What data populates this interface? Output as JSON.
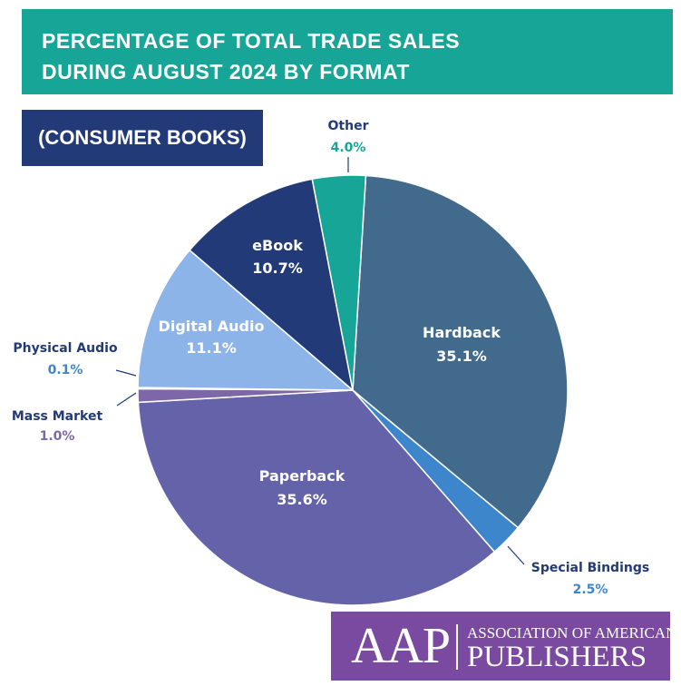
{
  "header": {
    "title_line1": "PERCENTAGE OF TOTAL TRADE SALES",
    "title_line2": "DURING AUGUST 2024 BY FORMAT",
    "subtitle": "(CONSUMER BOOKS)"
  },
  "colors": {
    "title_bg": "#16a596",
    "subtitle_bg": "#223a77",
    "logo_bg": "#7a4aa0"
  },
  "chart_data": {
    "type": "pie",
    "title": "PERCENTAGE OF TOTAL TRADE SALES DURING AUGUST 2024 BY FORMAT",
    "subtitle": "(CONSUMER BOOKS)",
    "start_angle_deg": 3.5,
    "direction": "clockwise",
    "slices": [
      {
        "label": "Hardback",
        "value": 35.1,
        "display": "35.1%",
        "color": "#426a8c",
        "label_color": "#ffffff",
        "label_placement": "inside"
      },
      {
        "label": "Special Bindings",
        "value": 2.5,
        "display": "2.5%",
        "color": "#3d86cc",
        "label_color": "#223a77",
        "value_color": "#3d86cc",
        "label_placement": "outside"
      },
      {
        "label": "Paperback",
        "value": 35.6,
        "display": "35.6%",
        "color": "#6462a8",
        "label_color": "#ffffff",
        "label_placement": "inside"
      },
      {
        "label": "Mass Market",
        "value": 1.0,
        "display": "1.0%",
        "color": "#7e67a8",
        "label_color": "#223a77",
        "value_color": "#7e67a8",
        "label_placement": "outside"
      },
      {
        "label": "Physical Audio",
        "value": 0.1,
        "display": "0.1%",
        "color": "#223a77",
        "label_color": "#223a77",
        "value_color": "#3d86cc",
        "label_placement": "outside"
      },
      {
        "label": "Digital Audio",
        "value": 11.1,
        "display": "11.1%",
        "color": "#8db4e8",
        "label_color": "#ffffff",
        "label_placement": "inside"
      },
      {
        "label": "eBook",
        "value": 10.7,
        "display": "10.7%",
        "color": "#223a77",
        "label_color": "#ffffff",
        "label_placement": "inside"
      },
      {
        "label": "Other",
        "value": 4.0,
        "display": "4.0%",
        "color": "#16a596",
        "label_color": "#223a77",
        "value_color": "#16a596",
        "label_placement": "outside"
      }
    ]
  },
  "logo": {
    "abbr": "AAP",
    "line1": "ASSOCIATION OF AMERICAN",
    "line2": "PUBLISHERS"
  }
}
